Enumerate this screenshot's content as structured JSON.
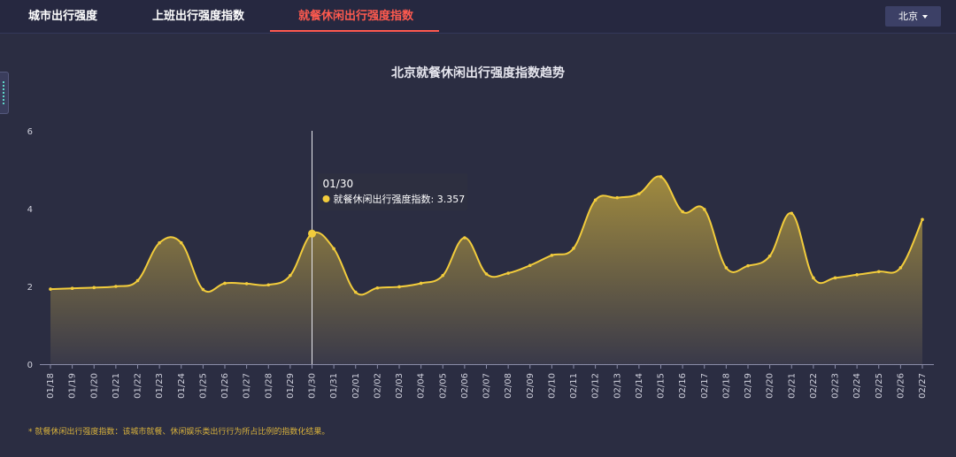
{
  "tabs": [
    {
      "label": "城市出行强度"
    },
    {
      "label": "上班出行强度指数"
    },
    {
      "label": "就餐休闲出行强度指数",
      "active": true
    }
  ],
  "city_selector": {
    "value": "北京"
  },
  "footnote": "* 就餐休闲出行强度指数：该城市就餐、休闲娱乐类出行行为所占比例的指数化结果。",
  "tooltip": {
    "date": "01/30",
    "series_label": "就餐休闲出行强度指数",
    "value": "3.357"
  },
  "colors": {
    "line": "#f2cc3c",
    "accent": "#ff5a4f"
  },
  "chart_data": {
    "type": "area",
    "title": "北京就餐休闲出行强度指数趋势",
    "xlabel": "",
    "ylabel": "",
    "ylim": [
      0,
      6
    ],
    "yticks": [
      "0",
      "2",
      "4",
      "6"
    ],
    "grid": false,
    "categories": [
      "01/18",
      "01/19",
      "01/20",
      "01/21",
      "01/22",
      "01/23",
      "01/24",
      "01/25",
      "01/26",
      "01/27",
      "01/28",
      "01/29",
      "01/30",
      "01/31",
      "02/01",
      "02/02",
      "02/03",
      "02/04",
      "02/05",
      "02/06",
      "02/07",
      "02/08",
      "02/09",
      "02/10",
      "02/11",
      "02/12",
      "02/13",
      "02/14",
      "02/15",
      "02/16",
      "02/17",
      "02/18",
      "02/19",
      "02/20",
      "02/21",
      "02/22",
      "02/23",
      "02/24",
      "02/25",
      "02/26",
      "02/27"
    ],
    "series": [
      {
        "name": "就餐休闲出行强度指数",
        "values": [
          1.93,
          1.95,
          1.97,
          2.0,
          2.15,
          3.12,
          3.12,
          1.92,
          2.08,
          2.07,
          2.04,
          2.28,
          3.357,
          2.97,
          1.85,
          1.96,
          1.99,
          2.08,
          2.28,
          3.25,
          2.32,
          2.34,
          2.54,
          2.8,
          2.98,
          4.22,
          4.28,
          4.38,
          4.82,
          3.92,
          3.98,
          2.48,
          2.53,
          2.78,
          3.88,
          2.22,
          2.22,
          2.3,
          2.38,
          2.48,
          3.72
        ]
      }
    ],
    "highlight_index": 12
  }
}
